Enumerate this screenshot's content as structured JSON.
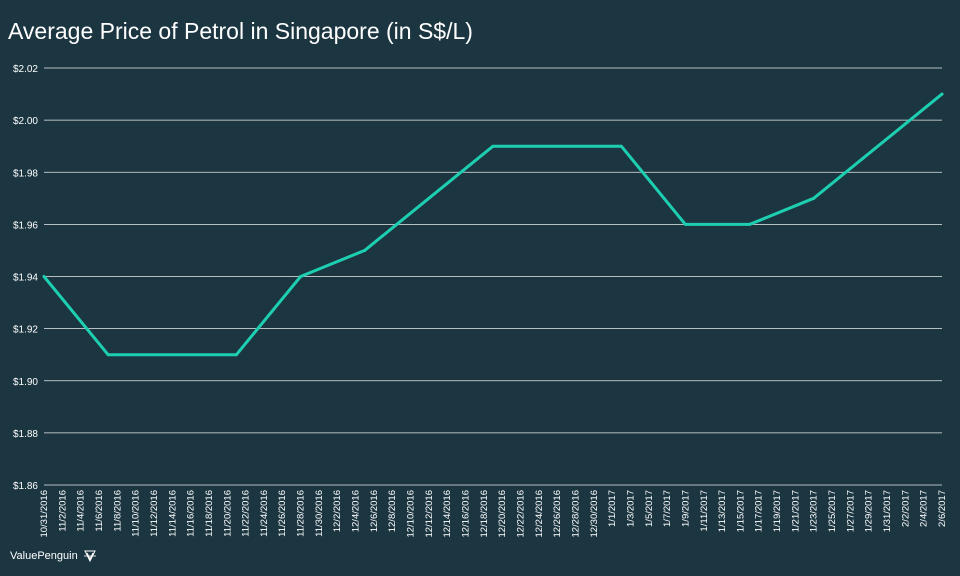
{
  "brand": {
    "name": "ValuePenguin",
    "icon": "penguin-logo-icon"
  },
  "colors": {
    "background": "#1b3541",
    "line": "#1dcfb0",
    "grid": "#ffffff",
    "text": "#ffffff"
  },
  "chart_data": {
    "type": "line",
    "title": "Average Price of Petrol in Singapore (in S$/L)",
    "xlabel": "",
    "ylabel": "",
    "ylim": [
      1.86,
      2.02
    ],
    "yticks": [
      1.86,
      1.88,
      1.9,
      1.92,
      1.94,
      1.96,
      1.98,
      2.0,
      2.02
    ],
    "ytick_labels": [
      "$1.86",
      "$1.88",
      "$1.90",
      "$1.92",
      "$1.94",
      "$1.96",
      "$1.98",
      "$2.00",
      "$2.02"
    ],
    "grid": true,
    "categories": [
      "10/31/2016",
      "11/2/2016",
      "11/4/2016",
      "11/6/2016",
      "11/8/2016",
      "11/10/2016",
      "11/12/2016",
      "11/14/2016",
      "11/16/2016",
      "11/18/2016",
      "11/20/2016",
      "11/22/2016",
      "11/24/2016",
      "11/26/2016",
      "11/28/2016",
      "11/30/2016",
      "12/2/2016",
      "12/4/2016",
      "12/6/2016",
      "12/8/2016",
      "12/10/2016",
      "12/12/2016",
      "12/14/2016",
      "12/16/2016",
      "12/18/2016",
      "12/20/2016",
      "12/22/2016",
      "12/24/2016",
      "12/26/2016",
      "12/28/2016",
      "12/30/2016",
      "1/1/2017",
      "1/3/2017",
      "1/5/2017",
      "1/7/2017",
      "1/9/2017",
      "1/11/2017",
      "1/13/2017",
      "1/15/2017",
      "1/17/2017",
      "1/19/2017",
      "1/21/2017",
      "1/23/2017",
      "1/25/2017",
      "1/27/2017",
      "1/29/2017",
      "1/31/2017",
      "2/2/2017",
      "2/4/2017",
      "2/6/2017"
    ],
    "x": [
      "10/31/2016",
      "11/7/2016",
      "11/21/2016",
      "11/28/2016",
      "12/5/2016",
      "12/19/2016",
      "1/2/2017",
      "1/9/2017",
      "1/16/2017",
      "1/23/2017",
      "2/6/2017"
    ],
    "series": [
      {
        "values": [
          1.94,
          1.91,
          1.91,
          1.94,
          1.95,
          1.99,
          1.99,
          1.96,
          1.96,
          1.97,
          2.01
        ]
      }
    ]
  }
}
